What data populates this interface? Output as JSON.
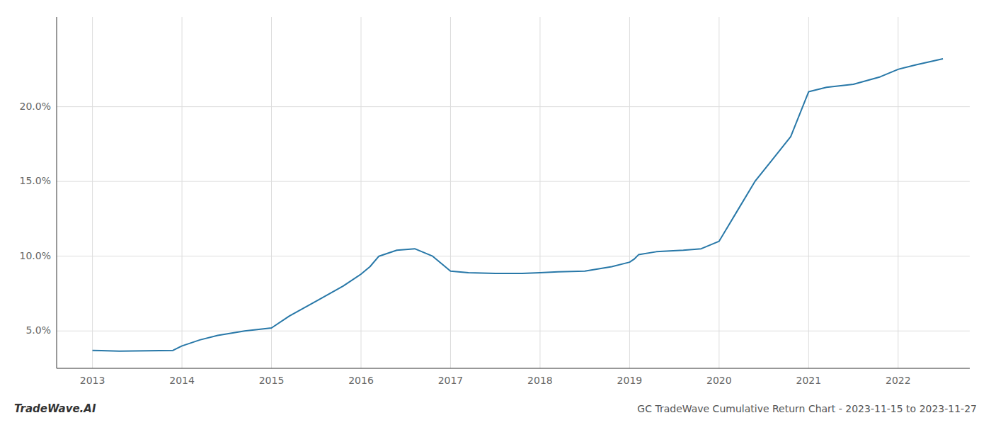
{
  "chart_data": {
    "type": "line",
    "title": "GC TradeWave Cumulative Return Chart - 2023-11-15 to 2023-11-27",
    "annotations": [
      "TradeWave.AI"
    ],
    "color": "#2878a8",
    "grid": true,
    "x": [
      2013.0,
      2013.1,
      2013.3,
      2013.6,
      2013.9,
      2014.0,
      2014.1,
      2014.2,
      2014.4,
      2014.7,
      2015.0,
      2015.2,
      2015.5,
      2015.8,
      2016.0,
      2016.1,
      2016.2,
      2016.4,
      2016.6,
      2016.8,
      2017.0,
      2017.2,
      2017.5,
      2017.8,
      2018.0,
      2018.2,
      2018.5,
      2018.8,
      2019.0,
      2019.05,
      2019.1,
      2019.3,
      2019.6,
      2019.8,
      2020.0,
      2020.2,
      2020.4,
      2020.6,
      2020.8,
      2021.0,
      2021.2,
      2021.5,
      2021.8,
      2022.0,
      2022.2,
      2022.5
    ],
    "values": [
      3.7,
      3.68,
      3.65,
      3.67,
      3.7,
      4.0,
      4.2,
      4.4,
      4.7,
      5.0,
      5.2,
      6.0,
      7.0,
      8.0,
      8.8,
      9.3,
      10.0,
      10.4,
      10.5,
      10.0,
      9.0,
      8.9,
      8.85,
      8.85,
      8.9,
      8.95,
      9.0,
      9.3,
      9.6,
      9.8,
      10.1,
      10.3,
      10.4,
      10.5,
      11.0,
      13.0,
      15.0,
      16.5,
      18.0,
      21.0,
      21.3,
      21.5,
      22.0,
      22.5,
      22.8,
      23.2
    ],
    "xlim": [
      2012.6,
      2022.8
    ],
    "ylim": [
      2.5,
      26.0
    ],
    "xticks": [
      2013,
      2014,
      2015,
      2016,
      2017,
      2018,
      2019,
      2020,
      2021,
      2022
    ],
    "yticks": [
      {
        "value": 5.0,
        "label": "5.0%"
      },
      {
        "value": 10.0,
        "label": "10.0%"
      },
      {
        "value": 15.0,
        "label": "15.0%"
      },
      {
        "value": 20.0,
        "label": "20.0%"
      }
    ]
  }
}
